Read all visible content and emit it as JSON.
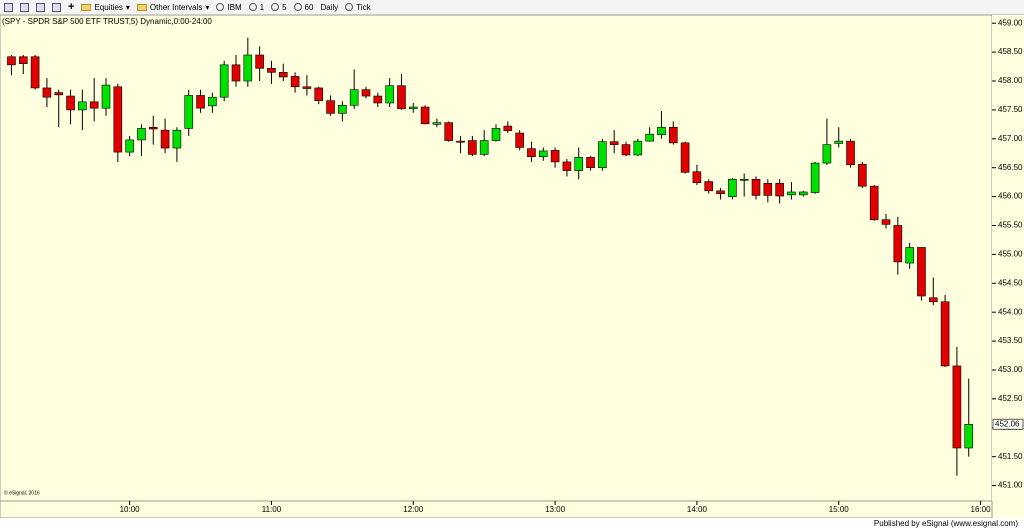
{
  "toolbar": {
    "items": [
      "Equities",
      "Other Intervals",
      "IBM",
      "1",
      "5",
      "60",
      "Daily",
      "Tick"
    ]
  },
  "chart_data": {
    "type": "candlestick",
    "title": "(SPY - SPDR S&P 500 ETF TRUST,5) Dynamic,0:00-24:00",
    "watermark": "© eSignal, 2016",
    "up_color": "#00e000",
    "down_color": "#e00000",
    "grid": false,
    "x": [
      550,
      555,
      560,
      565,
      570,
      575,
      580,
      585,
      590,
      595,
      600,
      605,
      610,
      615,
      620,
      625,
      630,
      635,
      640,
      645,
      650,
      655,
      660,
      665,
      670,
      675,
      680,
      685,
      690,
      695,
      700,
      705,
      710,
      715,
      720,
      725,
      730,
      735,
      740,
      745,
      750,
      755,
      760,
      765,
      770,
      775,
      780,
      785,
      790,
      795,
      800,
      805,
      810,
      815,
      820,
      825,
      830,
      835,
      840,
      845,
      850,
      855,
      860,
      865,
      870,
      875,
      880,
      885,
      890,
      895,
      900,
      905,
      910,
      915,
      920,
      925,
      930,
      935,
      940,
      945,
      950,
      955
    ],
    "open": [
      458.42,
      458.42,
      458.42,
      457.88,
      457.8,
      457.74,
      457.5,
      457.64,
      457.53,
      457.9,
      456.77,
      456.98,
      457.2,
      457.15,
      456.84,
      457.18,
      457.75,
      457.57,
      457.72,
      458.28,
      458.0,
      458.45,
      458.22,
      458.15,
      458.08,
      457.9,
      457.88,
      457.66,
      457.44,
      457.58,
      457.85,
      457.74,
      457.62,
      457.92,
      457.52,
      457.55,
      457.25,
      457.28,
      456.96,
      456.97,
      456.73,
      456.97,
      457.22,
      457.1,
      456.83,
      456.69,
      456.8,
      456.6,
      456.45,
      456.68,
      456.5,
      456.95,
      456.9,
      456.72,
      456.96,
      457.07,
      457.2,
      456.93,
      456.43,
      456.26,
      456.1,
      456.0,
      456.28,
      456.3,
      456.23,
      456.23,
      456.03,
      456.03,
      456.07,
      456.58,
      456.92,
      456.96,
      456.56,
      456.18,
      455.6,
      455.5,
      454.85,
      455.12,
      454.25,
      454.18,
      453.07,
      451.65
    ],
    "high": [
      458.45,
      458.45,
      458.45,
      458.05,
      457.85,
      457.85,
      457.85,
      458.05,
      458.05,
      457.95,
      457.05,
      457.25,
      457.4,
      457.35,
      457.2,
      457.85,
      457.85,
      457.8,
      458.35,
      458.45,
      458.75,
      458.6,
      458.35,
      458.3,
      458.15,
      458.1,
      457.9,
      457.75,
      457.65,
      458.2,
      457.9,
      457.8,
      458.05,
      458.12,
      457.62,
      457.58,
      457.35,
      457.3,
      457.05,
      457.05,
      457.15,
      457.25,
      457.3,
      457.15,
      456.95,
      456.85,
      456.85,
      456.65,
      456.85,
      456.7,
      457.0,
      457.15,
      456.95,
      457.0,
      457.2,
      457.48,
      457.3,
      456.95,
      456.55,
      456.3,
      456.15,
      456.32,
      456.4,
      456.35,
      456.3,
      456.3,
      456.25,
      456.1,
      456.6,
      457.35,
      457.2,
      457.0,
      456.6,
      456.2,
      455.7,
      455.65,
      455.2,
      455.12,
      454.6,
      454.3,
      453.4,
      452.85
    ],
    "low": [
      458.1,
      458.12,
      457.85,
      457.55,
      457.2,
      457.25,
      457.15,
      457.3,
      457.4,
      456.6,
      456.7,
      456.7,
      456.9,
      456.75,
      456.6,
      457.05,
      457.45,
      457.45,
      457.65,
      457.9,
      457.9,
      458.0,
      457.95,
      458.0,
      457.8,
      457.75,
      457.6,
      457.4,
      457.3,
      457.52,
      457.7,
      457.55,
      457.55,
      457.5,
      457.45,
      457.25,
      457.2,
      456.95,
      456.75,
      456.7,
      456.7,
      456.95,
      457.1,
      456.8,
      456.6,
      456.62,
      456.5,
      456.35,
      456.3,
      456.45,
      456.45,
      456.75,
      456.7,
      456.7,
      456.95,
      457.0,
      456.9,
      456.4,
      456.2,
      456.05,
      455.95,
      455.95,
      456.0,
      455.95,
      455.9,
      455.88,
      455.95,
      456.0,
      456.05,
      456.55,
      456.85,
      456.5,
      456.15,
      455.58,
      455.45,
      454.65,
      454.75,
      454.2,
      454.12,
      453.05,
      451.17,
      451.5
    ],
    "close": [
      458.28,
      458.3,
      457.88,
      457.72,
      457.76,
      457.5,
      457.64,
      457.53,
      457.93,
      456.77,
      456.98,
      457.18,
      457.17,
      456.84,
      457.15,
      457.75,
      457.53,
      457.72,
      458.28,
      458.0,
      458.45,
      458.22,
      458.15,
      458.07,
      457.9,
      457.87,
      457.66,
      457.44,
      457.58,
      457.85,
      457.74,
      457.62,
      457.92,
      457.52,
      457.55,
      457.26,
      457.28,
      456.97,
      456.94,
      456.73,
      456.97,
      457.18,
      457.14,
      456.85,
      456.69,
      456.79,
      456.6,
      456.45,
      456.68,
      456.5,
      456.95,
      456.9,
      456.72,
      456.96,
      457.08,
      457.2,
      456.93,
      456.42,
      456.24,
      456.1,
      456.05,
      456.3,
      456.3,
      456.02,
      456.02,
      456.01,
      456.08,
      456.08,
      456.58,
      456.9,
      456.96,
      456.55,
      456.18,
      455.6,
      455.52,
      454.87,
      455.12,
      454.28,
      454.18,
      453.07,
      451.65,
      452.06
    ],
    "xlim": [
      546,
      964
    ],
    "xticks": [
      {
        "value": 600,
        "label": "10:00"
      },
      {
        "value": 660,
        "label": "11:00"
      },
      {
        "value": 720,
        "label": "12:00"
      },
      {
        "value": 780,
        "label": "13:00"
      },
      {
        "value": 840,
        "label": "14:00"
      },
      {
        "value": 900,
        "label": "15:00"
      },
      {
        "value": 960,
        "label": "16:00"
      }
    ],
    "ylim": [
      450.75,
      459.125
    ],
    "yticks": [
      {
        "value": 451,
        "label": "451.00"
      },
      {
        "value": 451.5,
        "label": "451.50"
      },
      {
        "value": 452,
        "label": "452.00"
      },
      {
        "value": 452.5,
        "label": "452.50"
      },
      {
        "value": 453,
        "label": "453.00"
      },
      {
        "value": 453.5,
        "label": "453.50"
      },
      {
        "value": 454,
        "label": "454.00"
      },
      {
        "value": 454.5,
        "label": "454.50"
      },
      {
        "value": 455,
        "label": "455.00"
      },
      {
        "value": 455.5,
        "label": "455.50"
      },
      {
        "value": 456,
        "label": "456.00"
      },
      {
        "value": 456.5,
        "label": "456.50"
      },
      {
        "value": 457,
        "label": "457.00"
      },
      {
        "value": 457.5,
        "label": "457.50"
      },
      {
        "value": 458,
        "label": "458.00"
      },
      {
        "value": 458.5,
        "label": "458.50"
      },
      {
        "value": 459,
        "label": "459.00"
      }
    ]
  },
  "footer": "Published by eSignal (www.esignal.com)"
}
